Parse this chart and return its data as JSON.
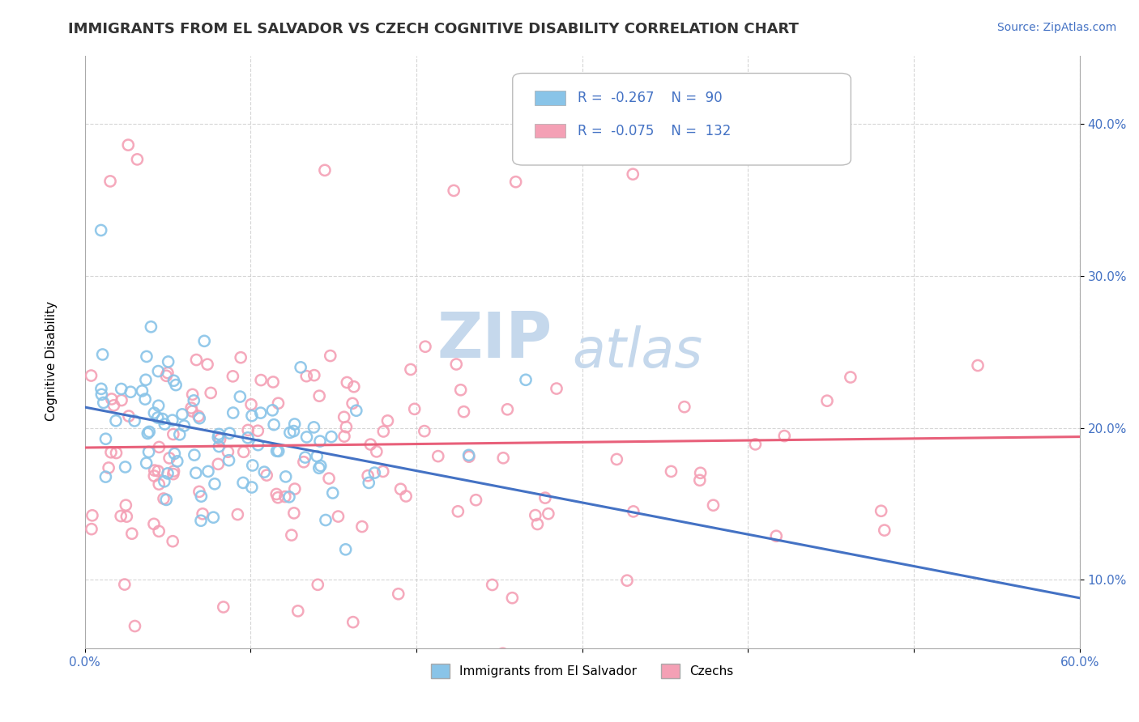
{
  "title": "IMMIGRANTS FROM EL SALVADOR VS CZECH COGNITIVE DISABILITY CORRELATION CHART",
  "source_text": "Source: ZipAtlas.com",
  "ylabel": "Cognitive Disability",
  "xlim": [
    0.0,
    0.6
  ],
  "ylim": [
    0.055,
    0.445
  ],
  "xticks": [
    0.0,
    0.1,
    0.2,
    0.3,
    0.4,
    0.5,
    0.6
  ],
  "xticklabels": [
    "0.0%",
    "",
    "",
    "",
    "",
    "",
    "60.0%"
  ],
  "yticks": [
    0.1,
    0.2,
    0.3,
    0.4
  ],
  "yticklabels": [
    "10.0%",
    "20.0%",
    "30.0%",
    "40.0%"
  ],
  "series1_label": "Immigrants from El Salvador",
  "series1_color": "#89C4E8",
  "series1_line_color": "#4472C4",
  "series1_R": -0.267,
  "series1_N": 90,
  "series2_label": "Czechs",
  "series2_color": "#F4A0B5",
  "series2_line_color": "#E8607A",
  "series2_R": -0.075,
  "series2_N": 132,
  "stat_color": "#4472C4",
  "watermark_text1": "ZIP",
  "watermark_text2": "atlas",
  "watermark_color": "#C5D8EC",
  "background_color": "#FFFFFF",
  "grid_color": "#CCCCCC",
  "title_fontsize": 13,
  "axis_label_fontsize": 11,
  "tick_fontsize": 11,
  "legend_fontsize": 12,
  "source_fontsize": 10
}
